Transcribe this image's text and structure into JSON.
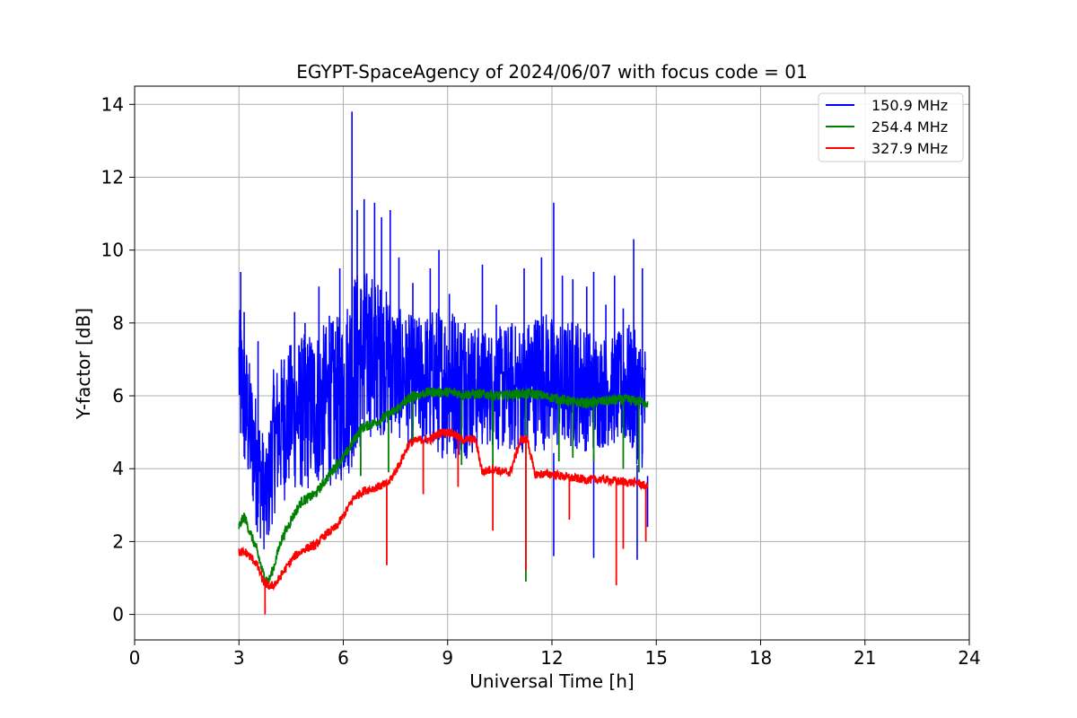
{
  "chart_data": {
    "type": "line",
    "title": "EGYPT-SpaceAgency of 2024/06/07 with focus code = 01",
    "xlabel": "Universal Time [h]",
    "ylabel": "Y-factor [dB]",
    "xlim": [
      0,
      24
    ],
    "ylim": [
      -0.7,
      14.5
    ],
    "xticks": [
      0,
      3,
      6,
      9,
      12,
      15,
      18,
      21,
      24
    ],
    "yticks": [
      0,
      2,
      4,
      6,
      8,
      10,
      12,
      14
    ],
    "grid": true,
    "legend_position": "top-right",
    "series": [
      {
        "name": "150.9 MHz",
        "color": "#0000ff",
        "band": [
          [
            3.0,
            4.8,
            8.5
          ],
          [
            3.2,
            3.5,
            7.5
          ],
          [
            3.5,
            2.3,
            6.0
          ],
          [
            3.8,
            1.5,
            4.5
          ],
          [
            4.0,
            2.7,
            6.8
          ],
          [
            4.5,
            3.3,
            7.5
          ],
          [
            5.0,
            3.3,
            7.8
          ],
          [
            5.5,
            3.5,
            8.0
          ],
          [
            6.0,
            3.5,
            8.3
          ],
          [
            6.3,
            4.0,
            9.5
          ],
          [
            6.7,
            4.8,
            9.5
          ],
          [
            7.2,
            4.9,
            9.0
          ],
          [
            7.7,
            4.7,
            8.3
          ],
          [
            8.2,
            4.5,
            8.2
          ],
          [
            8.7,
            4.3,
            8.5
          ],
          [
            9.2,
            4.2,
            8.5
          ],
          [
            9.7,
            4.3,
            8.0
          ],
          [
            10.2,
            4.6,
            7.8
          ],
          [
            10.7,
            4.3,
            8.0
          ],
          [
            11.2,
            4.4,
            8.0
          ],
          [
            11.7,
            4.5,
            8.5
          ],
          [
            12.2,
            4.4,
            8.0
          ],
          [
            12.7,
            4.5,
            8.2
          ],
          [
            13.2,
            4.4,
            7.8
          ],
          [
            13.7,
            4.6,
            7.6
          ],
          [
            14.2,
            4.4,
            8.0
          ],
          [
            14.7,
            3.8,
            7.5
          ]
        ],
        "spikes": [
          [
            3.05,
            9.4
          ],
          [
            3.15,
            8.3
          ],
          [
            3.55,
            7.5
          ],
          [
            4.3,
            7.0
          ],
          [
            4.6,
            8.3
          ],
          [
            4.9,
            8.0
          ],
          [
            5.3,
            9.0
          ],
          [
            5.6,
            8.2
          ],
          [
            5.9,
            9.5
          ],
          [
            6.25,
            13.8
          ],
          [
            6.4,
            11.1
          ],
          [
            6.6,
            11.4
          ],
          [
            6.9,
            11.3
          ],
          [
            7.1,
            10.9
          ],
          [
            7.35,
            11.1
          ],
          [
            7.6,
            9.8
          ],
          [
            8.0,
            9.1
          ],
          [
            8.5,
            9.5
          ],
          [
            8.75,
            10.0
          ],
          [
            9.05,
            8.8
          ],
          [
            9.5,
            8.0
          ],
          [
            10.0,
            9.6
          ],
          [
            10.4,
            8.5
          ],
          [
            10.85,
            8.0
          ],
          [
            11.2,
            9.5
          ],
          [
            11.7,
            9.8
          ],
          [
            12.05,
            11.3
          ],
          [
            12.3,
            9.3
          ],
          [
            12.6,
            9.2
          ],
          [
            13.0,
            9.0
          ],
          [
            13.2,
            9.4
          ],
          [
            13.55,
            8.5
          ],
          [
            13.8,
            9.3
          ],
          [
            14.05,
            8.4
          ],
          [
            14.35,
            10.3
          ],
          [
            14.6,
            9.5
          ]
        ],
        "dips": [
          [
            12.05,
            1.6
          ],
          [
            13.2,
            1.55
          ],
          [
            14.45,
            1.5
          ],
          [
            14.75,
            2.4
          ]
        ]
      },
      {
        "name": "254.4 MHz",
        "color": "#008000",
        "x": [
          3.0,
          3.15,
          3.3,
          3.5,
          3.7,
          3.85,
          4.0,
          4.2,
          4.5,
          4.8,
          5.2,
          5.5,
          5.8,
          6.0,
          6.2,
          6.5,
          7.0,
          7.5,
          8.0,
          8.5,
          9.0,
          9.5,
          10.0,
          10.5,
          11.0,
          11.5,
          12.0,
          12.5,
          13.0,
          13.5,
          14.0,
          14.5,
          14.75
        ],
        "y": [
          2.4,
          2.7,
          2.3,
          1.8,
          1.1,
          0.9,
          1.3,
          2.0,
          2.6,
          3.1,
          3.3,
          3.7,
          4.1,
          4.3,
          4.6,
          5.1,
          5.3,
          5.6,
          6.0,
          6.1,
          6.1,
          6.05,
          6.05,
          6.0,
          6.05,
          6.05,
          5.95,
          5.85,
          5.8,
          5.85,
          5.9,
          5.85,
          5.8
        ],
        "dips": [
          [
            6.5,
            3.8
          ],
          [
            7.3,
            3.9
          ],
          [
            8.0,
            4.7
          ],
          [
            9.4,
            4.1
          ],
          [
            10.3,
            3.8
          ],
          [
            11.25,
            0.9
          ],
          [
            12.2,
            4.2
          ],
          [
            12.6,
            4.3
          ],
          [
            13.2,
            4.2
          ],
          [
            14.05,
            4.0
          ],
          [
            14.5,
            3.9
          ]
        ]
      },
      {
        "name": "327.9 MHz",
        "color": "#ff0000",
        "x": [
          3.0,
          3.2,
          3.5,
          3.7,
          3.9,
          4.1,
          4.3,
          4.6,
          4.9,
          5.2,
          5.5,
          5.8,
          6.0,
          6.3,
          6.6,
          7.0,
          7.3,
          7.6,
          7.9,
          8.2,
          8.5,
          8.8,
          9.1,
          9.4,
          9.8,
          10.0,
          10.3,
          10.6,
          10.8,
          11.1,
          11.3,
          11.5,
          12.0,
          12.5,
          13.0,
          13.5,
          14.0,
          14.5,
          14.75
        ],
        "y": [
          1.7,
          1.7,
          1.4,
          0.9,
          0.75,
          0.9,
          1.2,
          1.6,
          1.8,
          1.9,
          2.2,
          2.4,
          2.7,
          3.2,
          3.4,
          3.5,
          3.6,
          4.1,
          4.7,
          4.8,
          4.8,
          5.0,
          5.0,
          4.8,
          4.8,
          3.9,
          4.0,
          3.9,
          3.9,
          4.8,
          4.8,
          3.85,
          3.85,
          3.75,
          3.7,
          3.7,
          3.65,
          3.6,
          3.5
        ],
        "dips": [
          [
            3.75,
            0.0
          ],
          [
            7.25,
            1.35
          ],
          [
            8.3,
            3.3
          ],
          [
            9.3,
            3.5
          ],
          [
            10.3,
            2.3
          ],
          [
            11.25,
            1.2
          ],
          [
            12.5,
            2.6
          ],
          [
            13.85,
            0.8
          ],
          [
            14.05,
            1.8
          ],
          [
            14.7,
            2.0
          ]
        ]
      }
    ]
  }
}
